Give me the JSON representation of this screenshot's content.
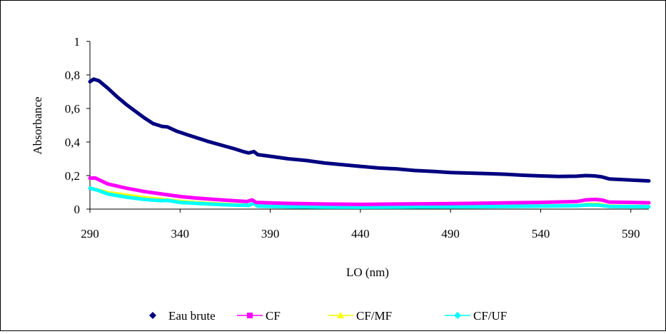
{
  "chart_data": {
    "type": "line",
    "title": "",
    "xlabel": "LO (nm)",
    "ylabel": "Absorbance",
    "xlim": [
      290,
      600
    ],
    "ylim": [
      0,
      1
    ],
    "x_ticks": [
      290,
      340,
      390,
      440,
      490,
      540,
      590
    ],
    "x_tick_labels": [
      "290",
      "340",
      "390",
      "440",
      "490",
      "540",
      "590"
    ],
    "y_ticks": [
      0,
      0.2,
      0.4,
      0.6,
      0.8,
      1
    ],
    "y_tick_labels": [
      "0",
      "0,2",
      "0,4",
      "0,6",
      "0,8",
      "1"
    ],
    "grid": false,
    "legend_position": "bottom",
    "series": [
      {
        "name": "Eau brute",
        "color": "#000080",
        "marker": "diamond",
        "points": [
          [
            290,
            0.76
          ],
          [
            292,
            0.775
          ],
          [
            295,
            0.765
          ],
          [
            300,
            0.72
          ],
          [
            305,
            0.67
          ],
          [
            310,
            0.625
          ],
          [
            315,
            0.585
          ],
          [
            320,
            0.545
          ],
          [
            325,
            0.51
          ],
          [
            330,
            0.493
          ],
          [
            333,
            0.49
          ],
          [
            338,
            0.465
          ],
          [
            345,
            0.44
          ],
          [
            355,
            0.405
          ],
          [
            365,
            0.375
          ],
          [
            370,
            0.36
          ],
          [
            375,
            0.343
          ],
          [
            378,
            0.335
          ],
          [
            381,
            0.343
          ],
          [
            383,
            0.325
          ],
          [
            390,
            0.315
          ],
          [
            400,
            0.3
          ],
          [
            410,
            0.29
          ],
          [
            420,
            0.275
          ],
          [
            430,
            0.265
          ],
          [
            440,
            0.255
          ],
          [
            450,
            0.245
          ],
          [
            460,
            0.24
          ],
          [
            470,
            0.23
          ],
          [
            480,
            0.225
          ],
          [
            490,
            0.218
          ],
          [
            500,
            0.215
          ],
          [
            510,
            0.212
          ],
          [
            520,
            0.208
          ],
          [
            530,
            0.202
          ],
          [
            540,
            0.198
          ],
          [
            550,
            0.195
          ],
          [
            560,
            0.196
          ],
          [
            565,
            0.2
          ],
          [
            570,
            0.198
          ],
          [
            574,
            0.192
          ],
          [
            578,
            0.18
          ],
          [
            585,
            0.176
          ],
          [
            590,
            0.173
          ],
          [
            600,
            0.168
          ]
        ]
      },
      {
        "name": "CF",
        "color": "#ff00ff",
        "marker": "square",
        "points": [
          [
            290,
            0.185
          ],
          [
            293,
            0.185
          ],
          [
            296,
            0.17
          ],
          [
            300,
            0.15
          ],
          [
            310,
            0.125
          ],
          [
            320,
            0.105
          ],
          [
            330,
            0.09
          ],
          [
            340,
            0.075
          ],
          [
            350,
            0.065
          ],
          [
            360,
            0.057
          ],
          [
            370,
            0.05
          ],
          [
            377,
            0.045
          ],
          [
            380,
            0.055
          ],
          [
            382,
            0.04
          ],
          [
            390,
            0.037
          ],
          [
            400,
            0.034
          ],
          [
            420,
            0.03
          ],
          [
            440,
            0.028
          ],
          [
            460,
            0.03
          ],
          [
            480,
            0.032
          ],
          [
            500,
            0.034
          ],
          [
            520,
            0.037
          ],
          [
            540,
            0.04
          ],
          [
            560,
            0.045
          ],
          [
            565,
            0.055
          ],
          [
            570,
            0.058
          ],
          [
            574,
            0.054
          ],
          [
            578,
            0.042
          ],
          [
            590,
            0.04
          ],
          [
            600,
            0.038
          ]
        ]
      },
      {
        "name": "CF/MF",
        "color": "#ffff00",
        "marker": "triangle",
        "points": [
          [
            290,
            0.125
          ],
          [
            295,
            0.115
          ],
          [
            300,
            0.1
          ],
          [
            310,
            0.085
          ],
          [
            320,
            0.07
          ],
          [
            330,
            0.06
          ],
          [
            340,
            0.048
          ],
          [
            350,
            0.04
          ],
          [
            360,
            0.034
          ],
          [
            370,
            0.028
          ],
          [
            378,
            0.025
          ],
          [
            381,
            0.03
          ],
          [
            383,
            0.02
          ],
          [
            390,
            0.018
          ],
          [
            400,
            0.016
          ],
          [
            420,
            0.014
          ],
          [
            440,
            0.012
          ],
          [
            460,
            0.013
          ],
          [
            480,
            0.014
          ],
          [
            500,
            0.016
          ],
          [
            520,
            0.018
          ],
          [
            540,
            0.02
          ],
          [
            560,
            0.022
          ],
          [
            566,
            0.03
          ],
          [
            572,
            0.03
          ],
          [
            578,
            0.02
          ],
          [
            590,
            0.018
          ],
          [
            600,
            0.017
          ]
        ]
      },
      {
        "name": "CF/UF",
        "color": "#00ffff",
        "marker": "diamond",
        "points": [
          [
            290,
            0.125
          ],
          [
            295,
            0.11
          ],
          [
            300,
            0.09
          ],
          [
            310,
            0.072
          ],
          [
            320,
            0.058
          ],
          [
            330,
            0.05
          ],
          [
            333,
            0.052
          ],
          [
            340,
            0.04
          ],
          [
            350,
            0.034
          ],
          [
            360,
            0.028
          ],
          [
            370,
            0.024
          ],
          [
            378,
            0.022
          ],
          [
            381,
            0.035
          ],
          [
            383,
            0.018
          ],
          [
            390,
            0.016
          ],
          [
            400,
            0.014
          ],
          [
            420,
            0.012
          ],
          [
            440,
            0.011
          ],
          [
            460,
            0.012
          ],
          [
            480,
            0.013
          ],
          [
            500,
            0.014
          ],
          [
            520,
            0.016
          ],
          [
            540,
            0.018
          ],
          [
            560,
            0.02
          ],
          [
            566,
            0.025
          ],
          [
            572,
            0.024
          ],
          [
            578,
            0.016
          ],
          [
            590,
            0.015
          ],
          [
            600,
            0.014
          ]
        ]
      }
    ]
  }
}
